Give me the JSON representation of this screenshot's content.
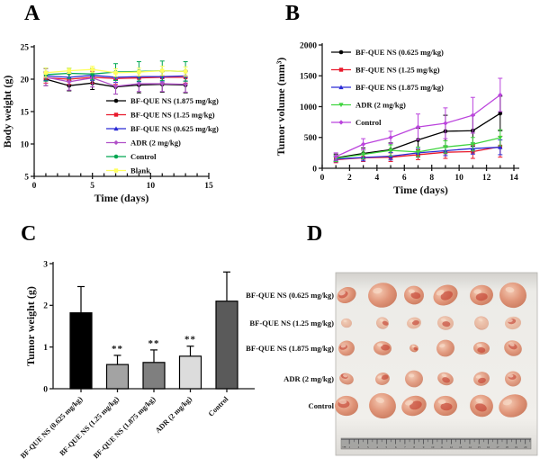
{
  "figure": {
    "panel_a": "A",
    "panel_b": "B",
    "panel_c": "C",
    "panel_d": "D"
  },
  "chart_data": [
    {
      "id": "A",
      "type": "line",
      "xlabel": "Time (days)",
      "ylabel": "Body weight (g)",
      "x": [
        1,
        3,
        5,
        7,
        9,
        11,
        13
      ],
      "xlim": [
        0,
        15
      ],
      "ylim": [
        5,
        25
      ],
      "xticks": [
        0,
        5,
        10,
        15
      ],
      "yticks": [
        5,
        10,
        15,
        20,
        25
      ],
      "grid": false,
      "legend_position": "inside-right-middle",
      "series": [
        {
          "name": "BF-QUE NS (1.875 mg/kg)",
          "color": "#000000",
          "marker": "circle",
          "values": [
            20.0,
            19.0,
            19.4,
            18.8,
            19.1,
            19.2,
            19.1
          ],
          "errors": [
            1.0,
            0.8,
            1.0,
            1.1,
            1.2,
            1.2,
            1.2
          ]
        },
        {
          "name": "BF-QUE NS (1.25 mg/kg)",
          "color": "#e8192c",
          "marker": "square",
          "values": [
            20.2,
            20.0,
            20.3,
            20.1,
            20.2,
            20.3,
            20.3
          ],
          "errors": [
            0.8,
            0.8,
            0.9,
            0.9,
            0.9,
            0.9,
            0.9
          ]
        },
        {
          "name": "BF-QUE NS (0.625 mg/kg)",
          "color": "#2b2bd5",
          "marker": "triangle",
          "values": [
            20.5,
            20.3,
            20.6,
            20.3,
            20.4,
            20.4,
            20.5
          ],
          "errors": [
            0.7,
            0.7,
            0.8,
            0.8,
            0.8,
            0.8,
            0.8
          ]
        },
        {
          "name": "ADR (2 mg/kg)",
          "color": "#b050c8",
          "marker": "diamond",
          "values": [
            20.3,
            19.6,
            20.2,
            18.9,
            19.3,
            19.3,
            19.2
          ],
          "errors": [
            1.3,
            1.3,
            1.4,
            1.2,
            1.2,
            1.2,
            1.2
          ]
        },
        {
          "name": "Control",
          "color": "#00a651",
          "marker": "circle",
          "values": [
            20.7,
            20.9,
            20.8,
            21.1,
            21.2,
            21.3,
            21.2
          ],
          "errors": [
            1.0,
            0.8,
            0.9,
            1.3,
            1.5,
            1.5,
            1.5
          ]
        },
        {
          "name": "Blank",
          "color": "#ffff5e",
          "marker": "square",
          "values": [
            21.0,
            21.3,
            21.5,
            21.0,
            21.1,
            21.3,
            21.2
          ],
          "errors": [
            0.7,
            0.4,
            0.5,
            0.6,
            0.6,
            0.7,
            0.7
          ]
        }
      ]
    },
    {
      "id": "B",
      "type": "line",
      "xlabel": "Time (days)",
      "ylabel": "Tumor volume (mm³)",
      "x": [
        1,
        3,
        5,
        7,
        9,
        11,
        13
      ],
      "xlim": [
        0,
        14
      ],
      "ylim": [
        0,
        2000
      ],
      "xticks": [
        0,
        2,
        4,
        6,
        8,
        10,
        12,
        14
      ],
      "yticks": [
        0,
        500,
        1000,
        1500,
        2000
      ],
      "grid": false,
      "legend_position": "inside-left-top",
      "series": [
        {
          "name": "BF-QUE NS (0.625 mg/kg)",
          "color": "#000000",
          "marker": "circle",
          "values": [
            170,
            240,
            300,
            460,
            600,
            610,
            890
          ],
          "errors": [
            60,
            90,
            110,
            190,
            260,
            250,
            280
          ]
        },
        {
          "name": "BF-QUE NS (1.25 mg/kg)",
          "color": "#e8192c",
          "marker": "square",
          "values": [
            140,
            170,
            180,
            220,
            260,
            270,
            350
          ],
          "errors": [
            50,
            60,
            70,
            80,
            100,
            110,
            170
          ]
        },
        {
          "name": "BF-QUE NS (1.875 mg/kg)",
          "color": "#2b2bd5",
          "marker": "triangle",
          "values": [
            150,
            175,
            195,
            250,
            285,
            320,
            340
          ],
          "errors": [
            45,
            55,
            60,
            70,
            80,
            90,
            120
          ]
        },
        {
          "name": "ADR (2 mg/kg)",
          "color": "#3fd43f",
          "marker": "tri-down",
          "values": [
            160,
            225,
            290,
            265,
            345,
            390,
            495
          ],
          "errors": [
            50,
            70,
            90,
            80,
            100,
            110,
            130
          ]
        },
        {
          "name": "Control",
          "color": "#bb44dd",
          "marker": "diamond",
          "values": [
            190,
            390,
            500,
            670,
            730,
            860,
            1190
          ],
          "errors": [
            60,
            90,
            100,
            210,
            250,
            290,
            270
          ]
        }
      ]
    },
    {
      "id": "C",
      "type": "bar",
      "xlabel": "",
      "ylabel": "Tumor weight (g)",
      "categories": [
        "BF-QUE NS (0.625 mg/kg)",
        "BF-QUE NS (1.25 mg/kg)",
        "BF-QUE NS (1.875 mg/kg)",
        "ADR (2 mg/kg)",
        "Control"
      ],
      "values": [
        1.82,
        0.58,
        0.63,
        0.78,
        2.1
      ],
      "errors": [
        0.63,
        0.22,
        0.3,
        0.24,
        0.7
      ],
      "significance": [
        "",
        "**",
        "**",
        "**",
        ""
      ],
      "bar_colors": [
        "#000000",
        "#a3a3a3",
        "#7f7f7f",
        "#dcdcdc",
        "#5a5a5a"
      ],
      "ylim": [
        0,
        3
      ],
      "yticks": [
        0,
        1,
        2,
        3
      ],
      "grid": false,
      "legend_position": "none"
    }
  ],
  "photo_panel": {
    "description": "excised tumors on white paper with ruler",
    "rows": [
      {
        "label": "BF-QUE NS (0.625 mg/kg)",
        "tumor_sizes": [
          11,
          16,
          11,
          14,
          13,
          15
        ]
      },
      {
        "label": "BF-QUE NS (1.25 mg/kg)",
        "tumor_sizes": [
          6,
          7,
          8,
          9,
          8,
          9
        ]
      },
      {
        "label": "BF-QUE NS (1.875 mg/kg)",
        "tumor_sizes": [
          9,
          10,
          5,
          10,
          9,
          10
        ]
      },
      {
        "label": "ADR (2 mg/kg)",
        "tumor_sizes": [
          8,
          8,
          10,
          9,
          9,
          9
        ]
      },
      {
        "label": "Control",
        "tumor_sizes": [
          13,
          15,
          14,
          13,
          13,
          16
        ]
      }
    ],
    "columns": 6,
    "tumor_color": "#e09579",
    "red_patch_color": "#c23b2c",
    "paper_color": "#efede9",
    "ruler_label": "cm",
    "ruler_start": 1,
    "ruler_end": 20
  }
}
